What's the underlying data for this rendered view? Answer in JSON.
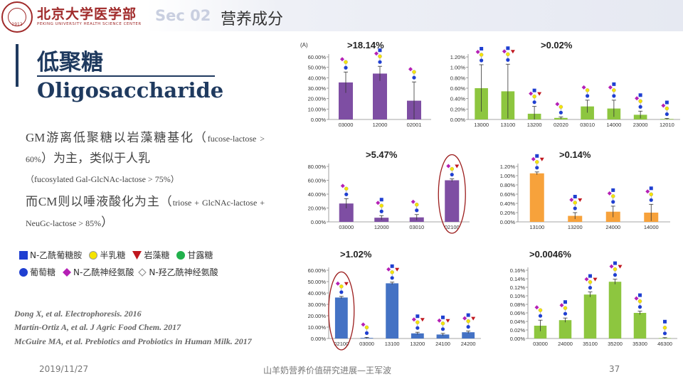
{
  "header": {
    "uni_name": "北京大学医学部",
    "uni_sub": "PEKING UNIVERSITY HEALTH SCIENCE CENTER",
    "logo_year": "1912",
    "sec": "Sec 02",
    "sec_title": "营养成分"
  },
  "title": {
    "cn": "低聚糖",
    "en": "Oligosaccharide"
  },
  "paragraphs": {
    "p1_big": "GM游离低聚糖以岩藻糖基化（",
    "p1_small": "fucose-lactose > 60%",
    "p1_big2": "）为主，类似于人乳",
    "p1_small2": "（fucosylated Gal-GlcNAc-lactose > 75%）",
    "p2_big": "而CM则以唾液酸化为主（",
    "p2_small": "triose + GlcNAc-lactose + NeuGc-lactose > 85%",
    "p2_big2": "）"
  },
  "legend": [
    {
      "label": "N-乙酰葡糖胺",
      "shape": "square",
      "color": "#1f3fd1"
    },
    {
      "label": "半乳糖",
      "shape": "circle",
      "color": "#f5e400"
    },
    {
      "label": "岩藻糖",
      "shape": "triangle",
      "color": "#c0161e"
    },
    {
      "label": "甘露糖",
      "shape": "circle",
      "color": "#22b14c"
    },
    {
      "label": "葡萄糖",
      "shape": "circle",
      "color": "#1f3fd1"
    },
    {
      "label": "N-乙酰神经氨酸",
      "shape": "diamond",
      "color": "#b520b5"
    },
    {
      "label": "N-羟乙酰神经氨酸",
      "shape": "diamond-outline",
      "color": "#aaaaaa"
    }
  ],
  "references": [
    "Dong X, et al. Electrophoresis. 2016",
    "Martín-Ortiz A, et al. J Agric Food Chem. 2017",
    "McGuire MA, et al. Prebiotics and Probiotics in Human Milk. 2017"
  ],
  "footer": {
    "date": "2019/11/27",
    "center": "山羊奶营养价值研究进展—王军波",
    "page": "37"
  },
  "chart_data": [
    {
      "type": "bar",
      "panel_label": "(A)",
      "title": ">18.14%",
      "color": "#7e4ea3",
      "categories": [
        "03000",
        "12000",
        "02001"
      ],
      "values": [
        35.5,
        44.0,
        18.0
      ],
      "errors": [
        10,
        7,
        18
      ],
      "ylim": [
        0,
        60
      ],
      "yticks": [
        "0.00%",
        "10.00%",
        "20.00%",
        "30.00%",
        "40.00%",
        "50.00%",
        "60.00%"
      ],
      "circled": -1
    },
    {
      "type": "bar",
      "title": ">0.02%",
      "color": "#8dc63f",
      "categories": [
        "13000",
        "13100",
        "13200",
        "02020",
        "03010",
        "14000",
        "23000",
        "12010"
      ],
      "values": [
        0.6,
        0.54,
        0.11,
        0.03,
        0.25,
        0.21,
        0.09,
        0.01
      ],
      "errors": [
        0.45,
        0.52,
        0.14,
        0.02,
        0.12,
        0.16,
        0.07,
        0.01
      ],
      "ylim": [
        0,
        1.2
      ],
      "yticks": [
        "0.00%",
        "0.20%",
        "0.40%",
        "0.60%",
        "0.80%",
        "1.00%",
        "1.20%"
      ],
      "circled": -1
    },
    {
      "type": "bar",
      "title": ">5.47%",
      "color": "#7e4ea3",
      "categories": [
        "03000",
        "12000",
        "03010",
        "02100"
      ],
      "values": [
        26.5,
        6.0,
        6.5,
        60.0
      ],
      "errors": [
        7,
        3,
        4,
        2
      ],
      "ylim": [
        0,
        80
      ],
      "yticks": [
        "0.00%",
        "20.00%",
        "40.00%",
        "60.00%",
        "80.00%"
      ],
      "circled": 3
    },
    {
      "type": "bar",
      "title": ">0.14%",
      "color": "#f7a23b",
      "categories": [
        "13100",
        "13200",
        "24000",
        "14000"
      ],
      "values": [
        1.05,
        0.13,
        0.22,
        0.2
      ],
      "errors": [
        0.03,
        0.07,
        0.12,
        0.18
      ],
      "ylim": [
        0,
        1.2
      ],
      "yticks": [
        "0.00%",
        "0.20%",
        "0.40%",
        "0.60%",
        "0.80%",
        "1.00%",
        "1.20%"
      ],
      "circled": -1
    },
    {
      "type": "bar",
      "title": ">1.02%",
      "color": "#4472c4",
      "categories": [
        "02100",
        "03000",
        "13100",
        "13200",
        "24100",
        "24200"
      ],
      "values": [
        36.0,
        0.5,
        48.5,
        4.5,
        3.5,
        5.5
      ],
      "errors": [
        1,
        0.5,
        1,
        1,
        1,
        1
      ],
      "ylim": [
        0,
        60
      ],
      "yticks": [
        "0.00%",
        "10.00%",
        "20.00%",
        "30.00%",
        "40.00%",
        "50.00%",
        "60.00%"
      ],
      "circled": 0
    },
    {
      "type": "bar",
      "title": ">0.0046%",
      "color": "#8dc63f",
      "categories": [
        "03000",
        "24000",
        "35100",
        "35200",
        "35300",
        "46300"
      ],
      "values": [
        0.03,
        0.043,
        0.103,
        0.133,
        0.06,
        0.001
      ],
      "errors": [
        0.013,
        0.005,
        0.006,
        0.006,
        0.004,
        0.001
      ],
      "ylim": [
        0,
        0.16
      ],
      "yticks": [
        "0.00%",
        "0.02%",
        "0.04%",
        "0.06%",
        "0.08%",
        "0.10%",
        "0.12%",
        "0.14%",
        "0.16%"
      ],
      "circled": -1
    }
  ]
}
